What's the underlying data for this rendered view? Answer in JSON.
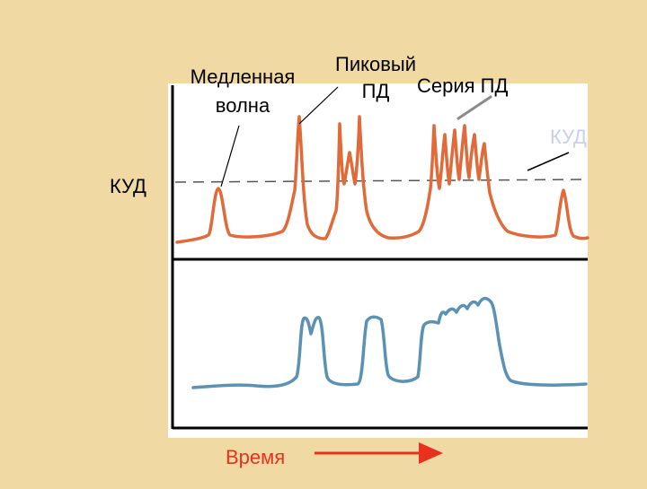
{
  "labels": {
    "slow_wave_line1": "Медленная",
    "slow_wave_line2": "волна",
    "spike_line1": "Пиковый",
    "spike_line2": "ПД",
    "series": "Серия ПД",
    "kud_left": "КУД",
    "kud_right": "КУД",
    "time": "Время"
  },
  "colors": {
    "background": "#f1d9a4",
    "panel": "#ffffff",
    "electrical_trace": "#e06a3a",
    "mechanical_trace": "#5b91b3",
    "threshold_line": "#555555",
    "time_arrow": "#e8321e",
    "time_label": "#e8321e",
    "kud_right_label": "#c9cfe6",
    "pointer_series": "#8a8a8a"
  }
}
